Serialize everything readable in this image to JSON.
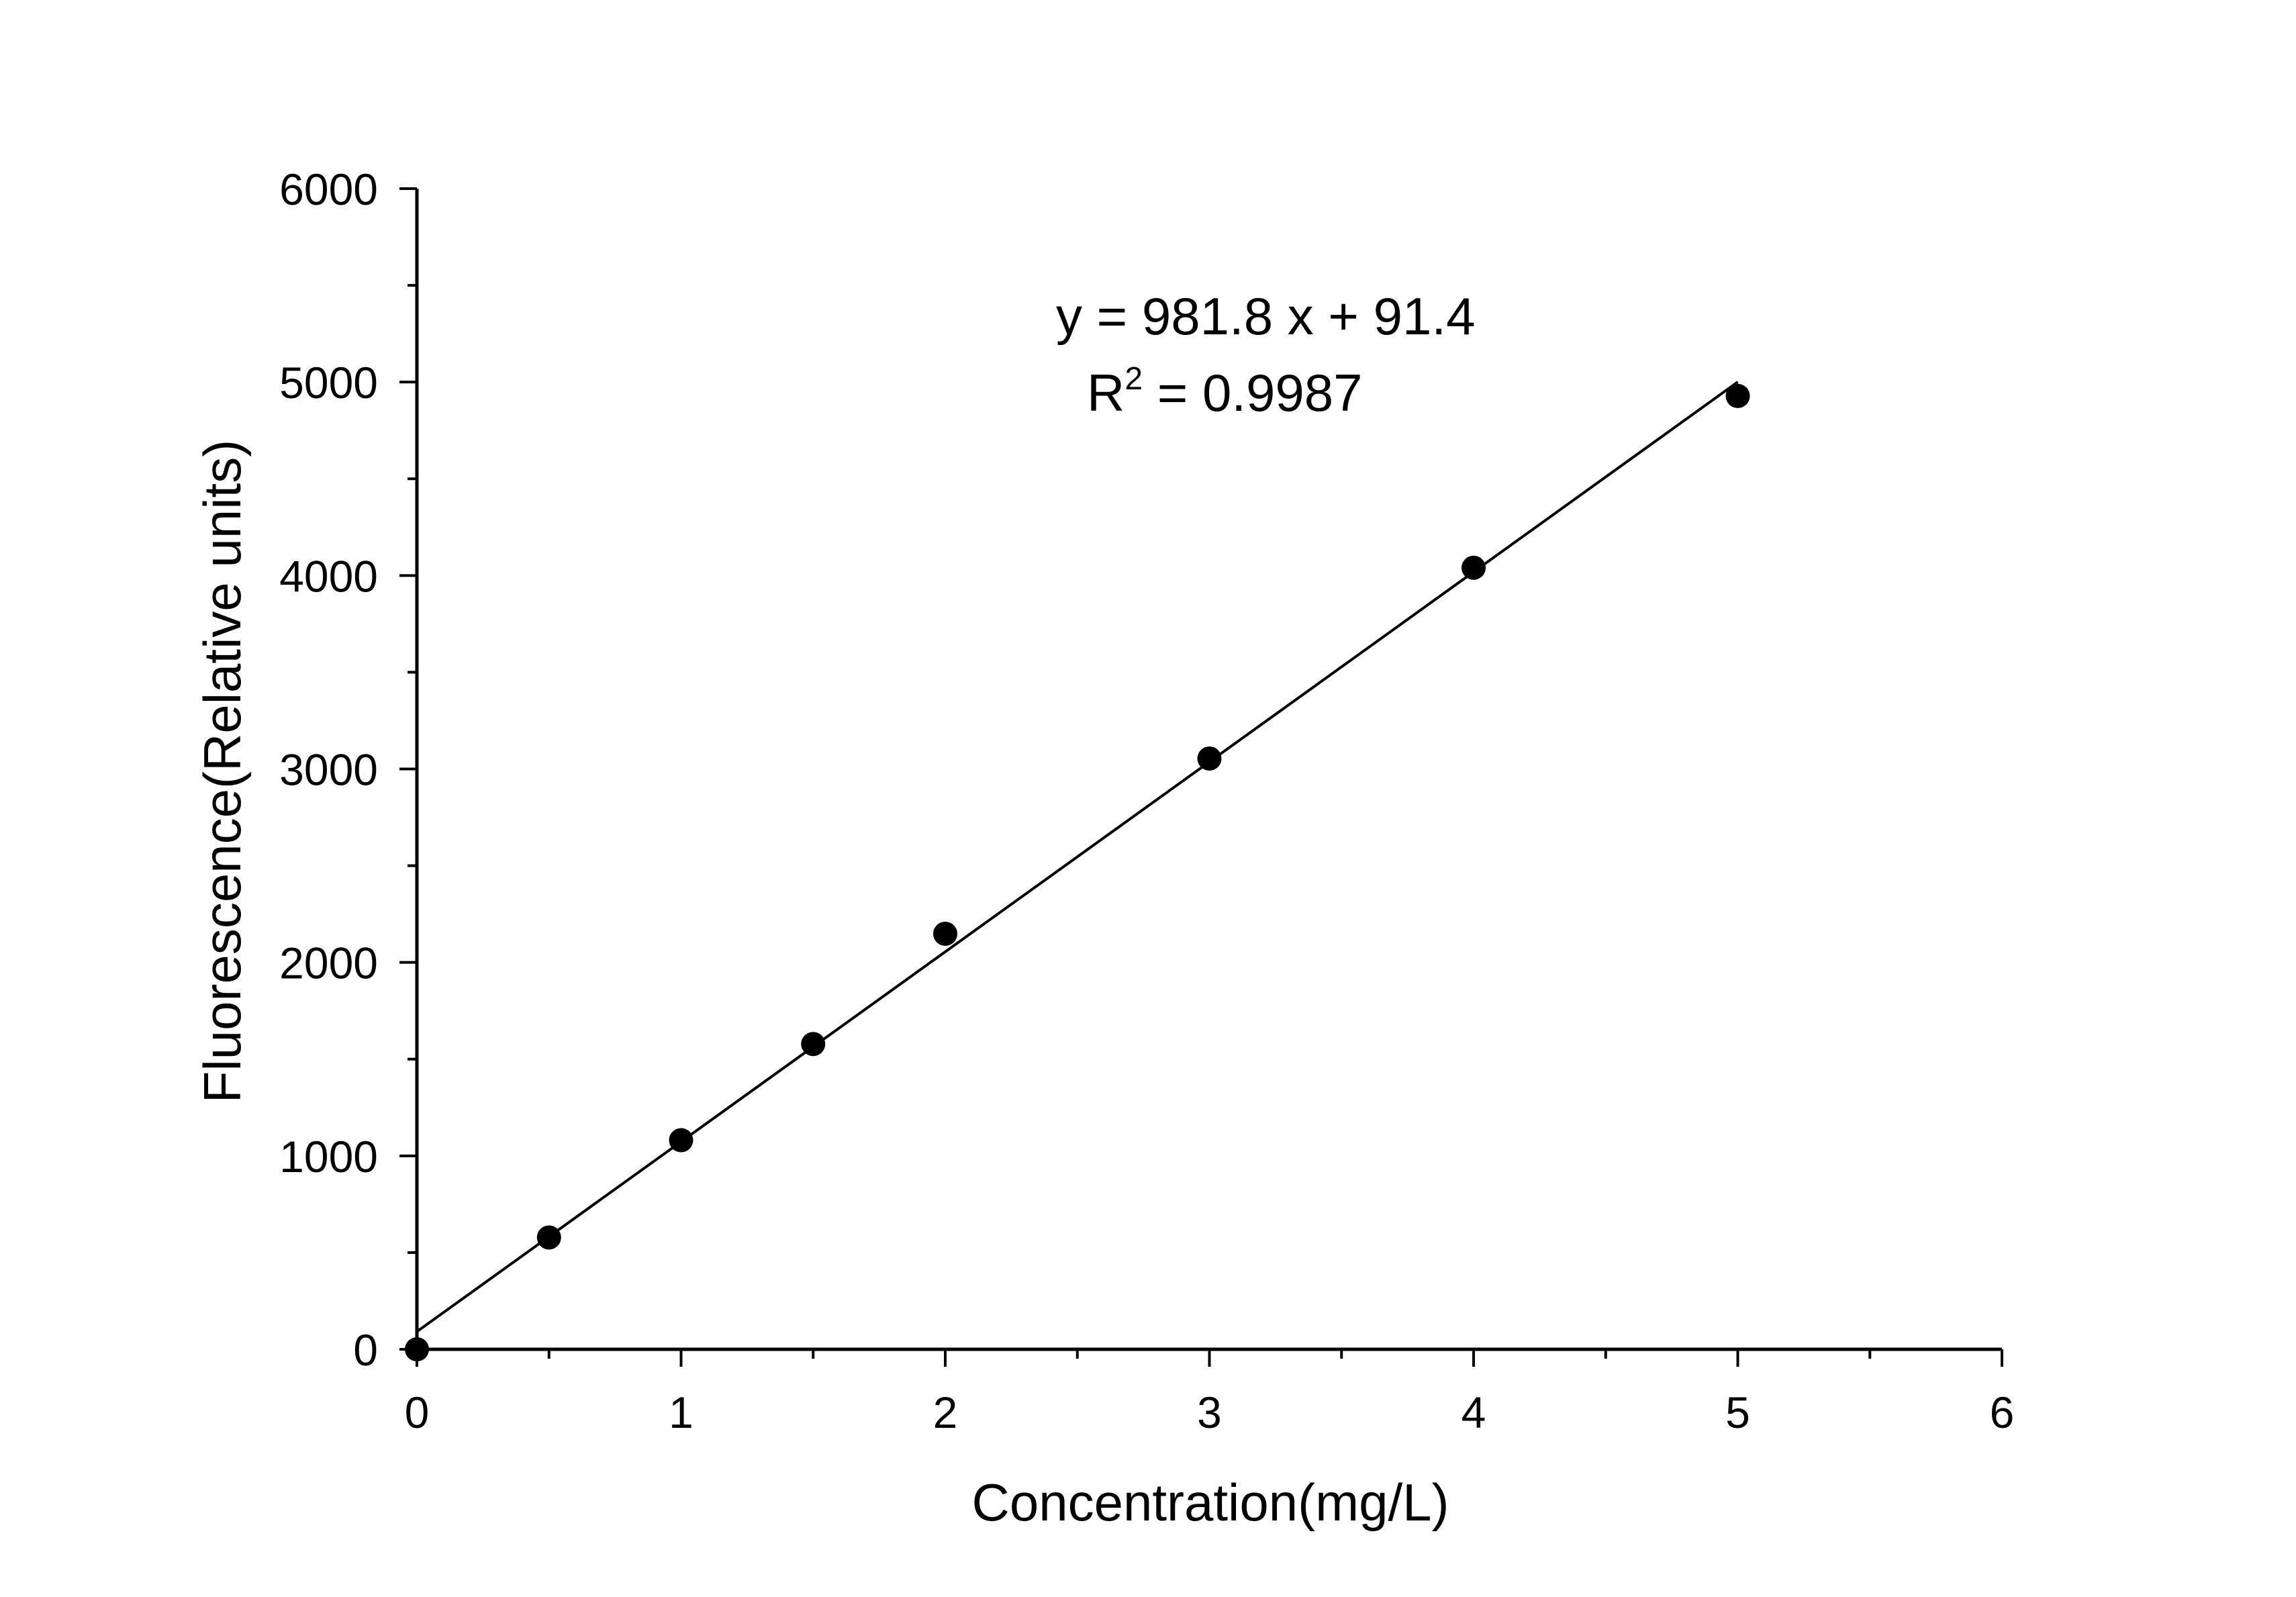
{
  "chart_data": {
    "type": "scatter",
    "title": "",
    "xlabel": "Concentration(mg/L)",
    "ylabel": "Fluorescence(Relative units)",
    "xlim": [
      0,
      6
    ],
    "ylim": [
      0,
      6000
    ],
    "x_ticks": [
      0,
      1,
      2,
      3,
      4,
      5,
      6
    ],
    "y_ticks": [
      0,
      1000,
      2000,
      3000,
      4000,
      5000,
      6000
    ],
    "x_tick_labels": [
      "0",
      "1",
      "2",
      "3",
      "4",
      "5",
      "6"
    ],
    "y_tick_labels": [
      "0",
      "1000",
      "2000",
      "3000",
      "4000",
      "5000",
      "6000"
    ],
    "x_minor_step": 0.5,
    "y_minor_step": 500,
    "grid": false,
    "marker_color": "#000000",
    "points": {
      "x": [
        0,
        0.5,
        1,
        1.5,
        2,
        3,
        4,
        5
      ],
      "y": [
        0,
        578,
        1081,
        1578,
        2148,
        3054,
        4040,
        4928
      ]
    },
    "fit": {
      "slope": 981.8,
      "intercept": 91.4,
      "x_range": [
        0,
        5
      ]
    },
    "annotations": {
      "equation": "y = 981.8 x + 91.4",
      "r2_prefix": "R",
      "r2_sup": "2",
      "r2_value": " = 0.9987"
    }
  }
}
